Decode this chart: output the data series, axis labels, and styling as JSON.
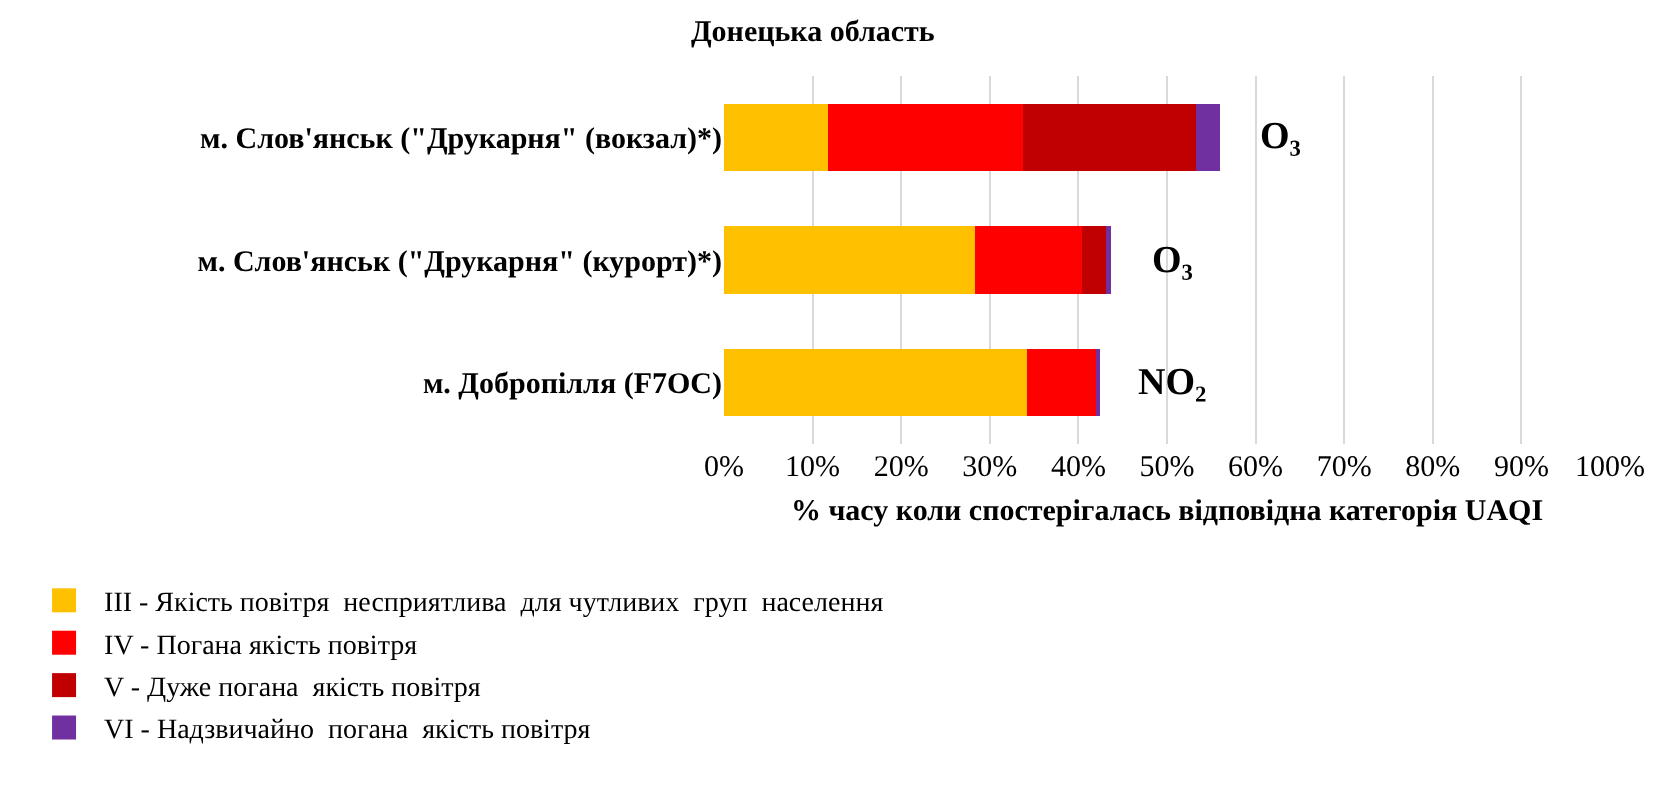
{
  "chart_data": {
    "type": "bar",
    "orientation": "horizontal",
    "stacked": true,
    "title": "Донецька область",
    "categories": [
      "м. Слов'янськ (\"Друкарня\" (вокзал)*)",
      "м. Слов'янськ (\"Друкарня\" (курорт)*)",
      "м. Добропілля (F7OC)"
    ],
    "series": [
      {
        "name": "III - Якість повітря  несприятлива  для чутливих  груп  населення",
        "color": "#ffc000",
        "values": [
          11.7,
          28.3,
          34.2
        ]
      },
      {
        "name": "IV - Погана якість повітря",
        "color": "#ff0000",
        "values": [
          22.0,
          12.1,
          7.9
        ]
      },
      {
        "name": "V - Дуже погана  якість повітря",
        "color": "#c00000",
        "values": [
          19.6,
          2.7,
          0
        ]
      },
      {
        "name": "VI - Надзвичайно  погана  якість повітря",
        "color": "#7030a0",
        "values": [
          2.7,
          0.6,
          0.2
        ]
      }
    ],
    "xlabel": "% часу коли спостерігалась відповідна категорія UAQI",
    "xlim": [
      0,
      100
    ],
    "xticks": [
      {
        "value": 0,
        "label": "0%"
      },
      {
        "value": 10,
        "label": "10%"
      },
      {
        "value": 20,
        "label": "20%"
      },
      {
        "value": 30,
        "label": "30%"
      },
      {
        "value": 40,
        "label": "40%"
      },
      {
        "value": 50,
        "label": "50%"
      },
      {
        "value": 60,
        "label": "60%"
      },
      {
        "value": 70,
        "label": "70%"
      },
      {
        "value": 80,
        "label": "80%"
      },
      {
        "value": 90,
        "label": "90%"
      },
      {
        "value": 100,
        "label": "100%"
      }
    ],
    "annotations": [
      {
        "text": "O₃",
        "x": 56.0,
        "y": "м. Слов'янськ (\"Друкарня\" (вокзал)*)"
      },
      {
        "text": "O₃",
        "x": 43.7,
        "y": "м. Слов'янськ (\"Друкарня\" (курорт)*)"
      },
      {
        "text": "NO₂",
        "x": 42.3,
        "y": "м. Добропілля (F7OC)"
      }
    ],
    "grid": "x",
    "legend": "bottom left"
  }
}
